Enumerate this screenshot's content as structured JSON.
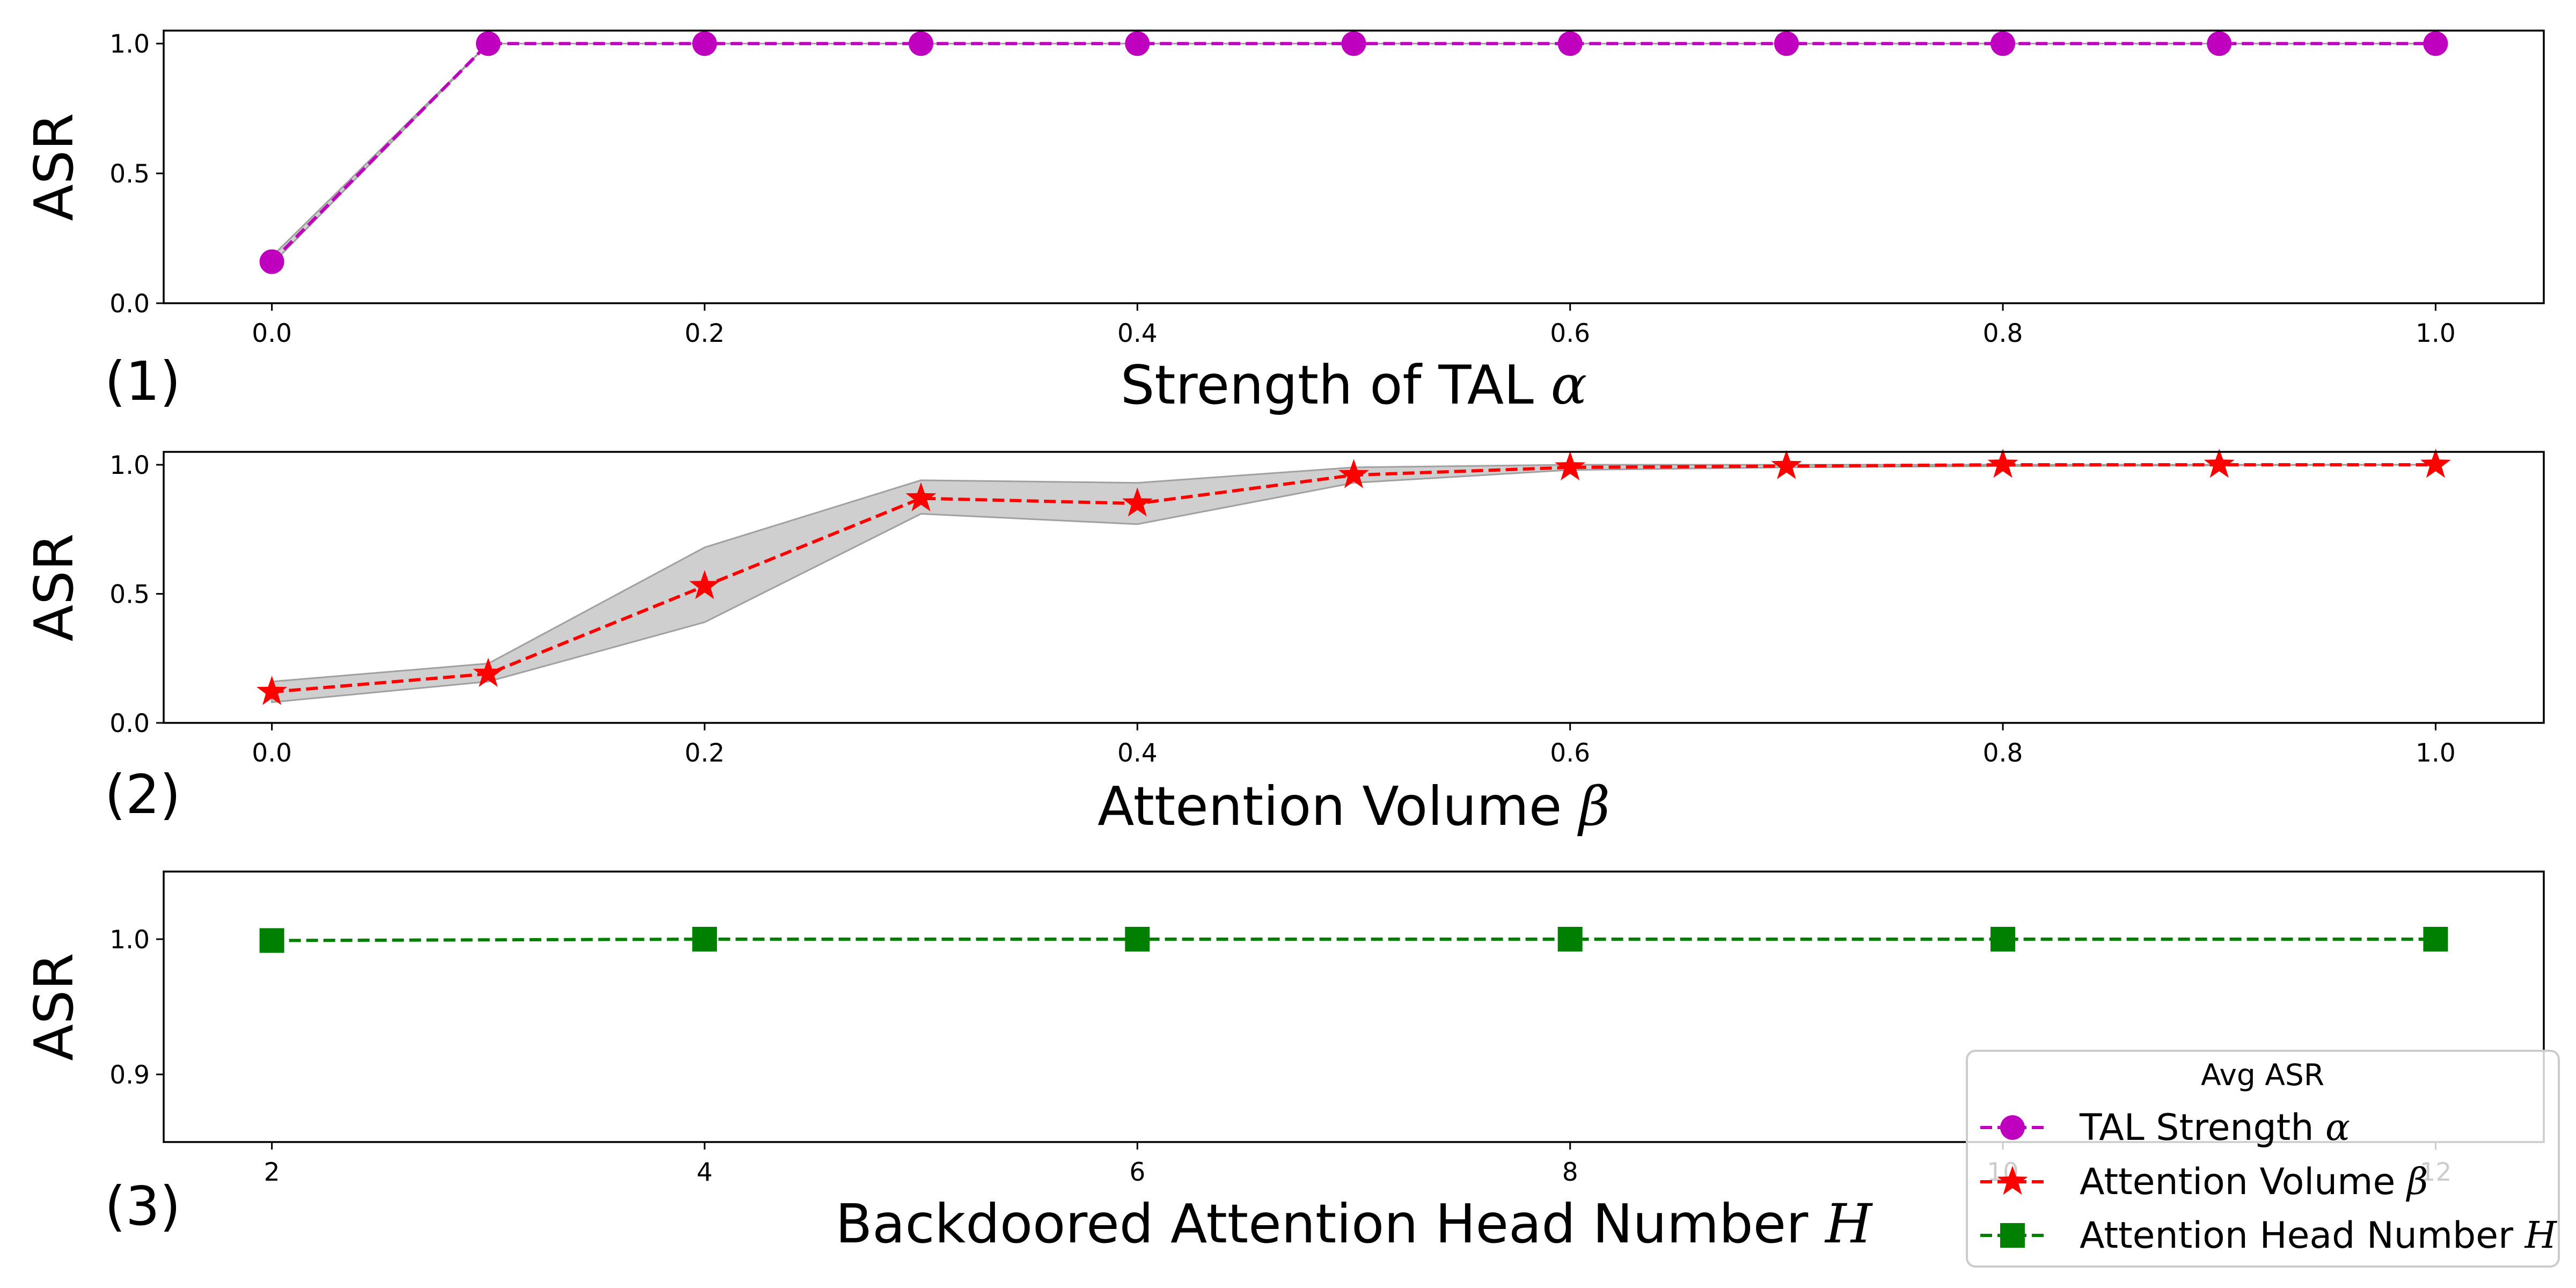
{
  "chart_data": [
    {
      "type": "line",
      "panel_tag": "(1)",
      "xlabel_text": "Strength of TAL ",
      "xlabel_symbol": "α",
      "ylabel": "ASR",
      "x": [
        0.0,
        0.1,
        0.2,
        0.3,
        0.4,
        0.5,
        0.6,
        0.7,
        0.8,
        0.9,
        1.0
      ],
      "xticks": [
        "0.0",
        "0.2",
        "0.4",
        "0.6",
        "0.8",
        "1.0"
      ],
      "xtick_values": [
        0.0,
        0.2,
        0.4,
        0.6,
        0.8,
        1.0
      ],
      "xlim": [
        -0.05,
        1.05
      ],
      "ylim": [
        0.0,
        1.05
      ],
      "yticks": [
        "0.0",
        "0.5",
        "1.0"
      ],
      "ytick_values": [
        0.0,
        0.5,
        1.0
      ],
      "series": [
        {
          "name": "TAL Strength α",
          "color": "#bf00bf",
          "marker": "circle",
          "linestyle": "dashed",
          "values": [
            0.16,
            1.0,
            1.0,
            1.0,
            1.0,
            1.0,
            1.0,
            1.0,
            1.0,
            1.0,
            1.0
          ],
          "band_lower": [
            0.15,
            1.0,
            1.0,
            1.0,
            1.0,
            1.0,
            1.0,
            1.0,
            1.0,
            1.0,
            1.0
          ],
          "band_upper": [
            0.18,
            1.0,
            1.0,
            1.0,
            1.0,
            1.0,
            1.0,
            1.0,
            1.0,
            1.0,
            1.0
          ]
        }
      ]
    },
    {
      "type": "line",
      "panel_tag": "(2)",
      "xlabel_text": "Attention Volume ",
      "xlabel_symbol": "β",
      "ylabel": "ASR",
      "x": [
        0.0,
        0.1,
        0.2,
        0.3,
        0.4,
        0.5,
        0.6,
        0.7,
        0.8,
        0.9,
        1.0
      ],
      "xticks": [
        "0.0",
        "0.2",
        "0.4",
        "0.6",
        "0.8",
        "1.0"
      ],
      "xtick_values": [
        0.0,
        0.2,
        0.4,
        0.6,
        0.8,
        1.0
      ],
      "xlim": [
        -0.05,
        1.05
      ],
      "ylim": [
        0.0,
        1.05
      ],
      "yticks": [
        "0.0",
        "0.5",
        "1.0"
      ],
      "ytick_values": [
        0.0,
        0.5,
        1.0
      ],
      "series": [
        {
          "name": "Attention Volume β",
          "color": "#ff0000",
          "marker": "star",
          "linestyle": "dashed",
          "values": [
            0.12,
            0.19,
            0.53,
            0.87,
            0.85,
            0.96,
            0.99,
            0.995,
            1.0,
            1.0,
            1.0
          ],
          "band_lower": [
            0.08,
            0.16,
            0.39,
            0.81,
            0.77,
            0.93,
            0.98,
            0.99,
            0.995,
            0.998,
            1.0
          ],
          "band_upper": [
            0.16,
            0.23,
            0.68,
            0.94,
            0.93,
            0.99,
            1.0,
            1.0,
            1.0,
            1.0,
            1.0
          ]
        }
      ]
    },
    {
      "type": "line",
      "panel_tag": "(3)",
      "xlabel_text": "Backdoored Attention Head Number ",
      "xlabel_symbol": "H",
      "ylabel": "ASR",
      "x": [
        2,
        4,
        6,
        8,
        10,
        12
      ],
      "xticks": [
        "2",
        "4",
        "6",
        "8",
        "10",
        "12"
      ],
      "xtick_values": [
        2,
        4,
        6,
        8,
        10,
        12
      ],
      "xlim": [
        1.5,
        12.5
      ],
      "ylim": [
        0.85,
        1.05
      ],
      "yticks": [
        "0.9",
        "1.0"
      ],
      "ytick_values": [
        0.9,
        1.0
      ],
      "series": [
        {
          "name": "Attention Head Number H",
          "color": "#008000",
          "marker": "square",
          "linestyle": "dashed",
          "values": [
            0.999,
            1.0,
            1.0,
            1.0,
            1.0,
            1.0
          ]
        }
      ]
    }
  ],
  "legend": {
    "title": "Avg ASR",
    "placement": "bottom-right",
    "entries": [
      {
        "text": "TAL Strength ",
        "symbol": "α"
      },
      {
        "text": "Attention Volume ",
        "symbol": "β"
      },
      {
        "text": "Attention Head Number ",
        "symbol": "H"
      }
    ]
  },
  "colors": {
    "band_fill": "#a0a0a0",
    "band_edge": "#a0a0a0"
  }
}
